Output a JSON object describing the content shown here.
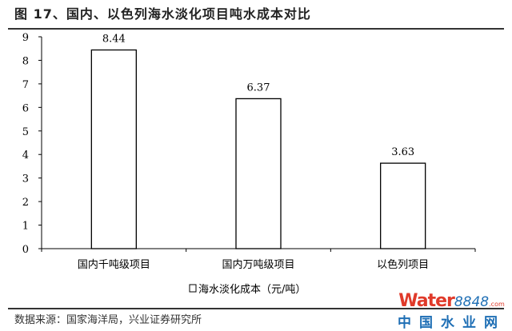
{
  "title": "图 17、国内、以色列海水淡化项目吨水成本对比",
  "source": "数据来源：国家海洋局，兴业证券研究所",
  "watermark": {
    "brand": "Water",
    "num": "8848",
    "suffix": ".com",
    "cn": "中国水业网"
  },
  "chart_data": {
    "type": "bar",
    "title": "图 17、国内、以色列海水淡化项目吨水成本对比",
    "categories": [
      "国内千吨级项目",
      "国内万吨级项目",
      "以色列项目"
    ],
    "series": [
      {
        "name": "海水淡化成本（元/吨）",
        "values": [
          8.44,
          6.37,
          3.63
        ]
      }
    ],
    "data_labels": [
      "8.44",
      "6.37",
      "3.63"
    ],
    "ylim": [
      0,
      9
    ],
    "yticks": [
      "0",
      "1",
      "2",
      "3",
      "4",
      "5",
      "6",
      "7",
      "8",
      "9"
    ],
    "legend": "bottom",
    "grid": false,
    "colors": {
      "bar_fill": "#ffffff",
      "bar_stroke": "#000000"
    }
  }
}
